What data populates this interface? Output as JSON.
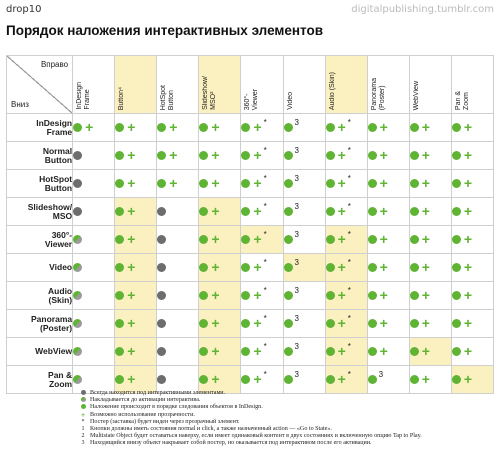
{
  "brand": "drop10",
  "site": "digitalpublishing.tumblr.com",
  "title": "Порядок наложения интерактивных элементов",
  "corner": {
    "right": "Вправо",
    "down": "Вниз"
  },
  "highlight_columns": [
    1,
    3,
    6
  ],
  "columns": [
    "InDesign\nFrame",
    "Button⁴",
    "HotSpot\nButton",
    "Slideshow/\nMSO²",
    "360°-\nViewer",
    "Video",
    "Audio (Skin)",
    "Panorama\n(Poster)",
    "WebView",
    "Pan &\nZoom"
  ],
  "rows": [
    {
      "label": "InDesign\nFrame",
      "highlight": [],
      "cells": [
        "green+",
        "green+",
        "green+",
        "green+",
        "green+*",
        "green3",
        "green+*",
        "green+",
        "green+",
        "green+"
      ]
    },
    {
      "label": "Normal\nButton",
      "highlight": [],
      "cells": [
        "gray",
        "green+",
        "green+",
        "green+",
        "green+*",
        "green3",
        "green+*",
        "green+",
        "green+",
        "green+"
      ]
    },
    {
      "label": "HotSpot\nButton",
      "highlight": [],
      "cells": [
        "gray",
        "green+",
        "green+",
        "green+",
        "green+*",
        "green3",
        "green+*",
        "green+",
        "green+",
        "green+"
      ]
    },
    {
      "label": "Slideshow/\nMSO",
      "highlight": [
        1,
        3
      ],
      "cells": [
        "gray",
        "green+",
        "gray",
        "green+",
        "green+*",
        "green3",
        "green+*",
        "green+",
        "green+",
        "green+"
      ]
    },
    {
      "label": "360°-\nViewer",
      "highlight": [
        1,
        3,
        4,
        6
      ],
      "cells": [
        "half",
        "green+",
        "gray",
        "green+",
        "green+*",
        "green3",
        "green+*",
        "green+",
        "green+",
        "green+"
      ]
    },
    {
      "label": "Video",
      "highlight": [
        1,
        3,
        5,
        6
      ],
      "cells": [
        "half",
        "green+",
        "gray",
        "green+",
        "green+*",
        "green3",
        "green+*",
        "green+",
        "green+",
        "green+"
      ]
    },
    {
      "label": "Audio\n(Skin)",
      "highlight": [
        1,
        3,
        6
      ],
      "cells": [
        "half",
        "green+",
        "gray",
        "green+",
        "green+*",
        "green3",
        "green+*",
        "green+",
        "green+",
        "green+"
      ]
    },
    {
      "label": "Panorama\n(Poster)",
      "highlight": [
        1,
        3,
        6
      ],
      "cells": [
        "half",
        "green+",
        "gray",
        "green+",
        "green+*",
        "green3",
        "green+*",
        "green+",
        "green+",
        "green+"
      ]
    },
    {
      "label": "WebView",
      "highlight": [
        1,
        3,
        6,
        8
      ],
      "cells": [
        "half",
        "green+",
        "gray",
        "green+",
        "green+*",
        "green3",
        "green+*",
        "green+",
        "green+",
        "green+"
      ]
    },
    {
      "label": "Pan &\nZoom",
      "highlight": [
        1,
        3,
        6,
        9
      ],
      "cells": [
        "half",
        "green+",
        "gray",
        "green+",
        "green+*",
        "green3",
        "green+*",
        "green3",
        "green+",
        "green+"
      ]
    }
  ],
  "legend": [
    {
      "symbol": "gray",
      "text": "Всегда находится под интерактивными элементами."
    },
    {
      "symbol": "half",
      "text": "Накладывается до активации интерактива."
    },
    {
      "symbol": "green",
      "text": "Наложение происходит в порядке следования объектов в InDesign."
    },
    {
      "symbol": "plus",
      "text": "Возможно использование прозрачности."
    },
    {
      "symbol": "*",
      "text": "Постер (заставка) будет виден через прозрачный элемент."
    },
    {
      "symbol": "1",
      "text": "Кнопки должны иметь состояния normal и click, а также назначенный action — «Go to State»."
    },
    {
      "symbol": "2",
      "text": "Multistate Object будет оставаться наверху, если имеет одинаковый контент в двух состояниях и включенную опцию Tap to Play."
    },
    {
      "symbol": "3",
      "text": "Находящийся внизу объект накрывает собой постер, но оказывается под интерактивом после его активации."
    }
  ],
  "colors": {
    "green": "#5fb434",
    "gray": "#6d6d6d",
    "highlight": "#fbf0c0"
  }
}
